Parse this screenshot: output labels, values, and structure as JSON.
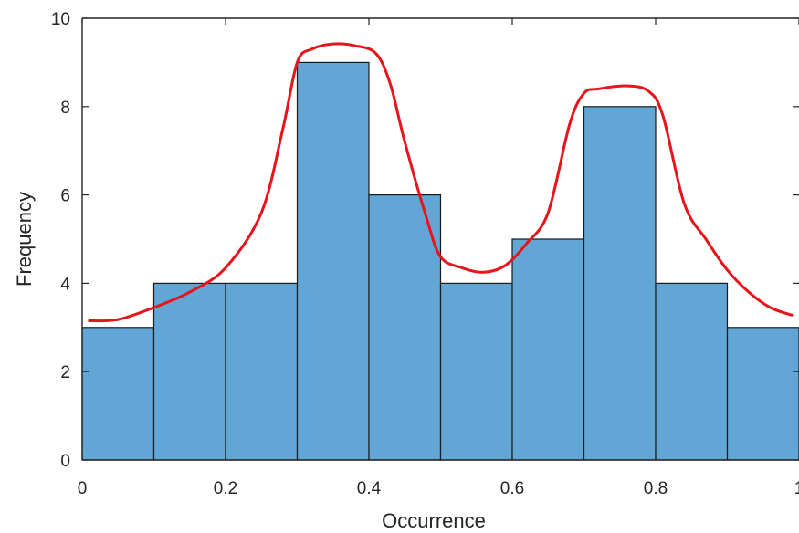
{
  "chart_data": {
    "type": "bar",
    "subtype": "histogram",
    "xlabel": "Occurrence",
    "ylabel": "Frequency",
    "xlim": [
      0,
      1
    ],
    "ylim": [
      0,
      10
    ],
    "bin_edges": [
      0,
      0.1,
      0.2,
      0.3,
      0.4,
      0.5,
      0.6,
      0.7,
      0.8,
      0.9,
      1.0
    ],
    "values": [
      3,
      4,
      4,
      9,
      6,
      4,
      5,
      8,
      4,
      3
    ],
    "x_ticks": [
      0,
      0.2,
      0.4,
      0.6,
      0.8,
      1
    ],
    "x_tick_labels": [
      "0",
      "0.2",
      "0.4",
      "0.6",
      "0.8",
      "1"
    ],
    "y_ticks": [
      0,
      2,
      4,
      6,
      8,
      10
    ],
    "y_tick_labels": [
      "0",
      "2",
      "4",
      "6",
      "8",
      "10"
    ],
    "grid": false,
    "colors": {
      "bar_fill": "#62a6d6",
      "bar_edge": "#1a1a1a",
      "overlay_line": "#e8141c",
      "axis": "#262626"
    },
    "overlay_curve": {
      "type": "line",
      "description": "hand-drawn density curve",
      "x": [
        0.01,
        0.05,
        0.1,
        0.15,
        0.2,
        0.25,
        0.28,
        0.3,
        0.32,
        0.35,
        0.38,
        0.41,
        0.43,
        0.45,
        0.48,
        0.5,
        0.53,
        0.56,
        0.59,
        0.62,
        0.65,
        0.68,
        0.7,
        0.72,
        0.76,
        0.79,
        0.81,
        0.84,
        0.87,
        0.9,
        0.93,
        0.96,
        0.99
      ],
      "y": [
        3.15,
        3.18,
        3.45,
        3.8,
        4.35,
        5.6,
        7.5,
        9.0,
        9.3,
        9.42,
        9.38,
        9.2,
        8.5,
        7.2,
        5.5,
        4.6,
        4.35,
        4.25,
        4.4,
        4.9,
        5.6,
        7.6,
        8.3,
        8.4,
        8.47,
        8.35,
        7.8,
        5.8,
        5.0,
        4.3,
        3.8,
        3.45,
        3.28
      ]
    }
  }
}
